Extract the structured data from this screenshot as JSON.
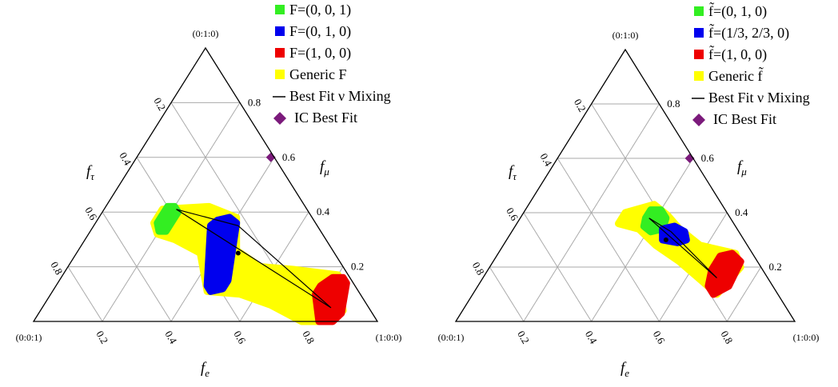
{
  "colors": {
    "green": "#33ee22",
    "blue": "#0000ee",
    "red": "#ee0000",
    "yellow": "#ffff00",
    "purple": "#7b1a7b",
    "grid": "#aaaaaa"
  },
  "chart_data": [
    {
      "type": "ternary",
      "vertex_labels": {
        "top": "(0:1:0)",
        "left": "(0:0:1)",
        "right": "(1:0:0)"
      },
      "axis_labels": {
        "f_tau": "f",
        "f_tau_sub": "τ",
        "f_mu": "f",
        "f_mu_sub": "μ",
        "f_e": "f",
        "f_e_sub": "e"
      },
      "ticks": {
        "left_edge": [
          "0.2",
          "0.4",
          "0.6",
          "0.8"
        ],
        "right_edge": [
          "0.8",
          "0.6",
          "0.4",
          "0.2"
        ],
        "bottom_edge": [
          "0.2",
          "0.4",
          "0.6",
          "0.8"
        ]
      },
      "legend": [
        {
          "label": "F=(0, 0, 1)",
          "color": "green",
          "marker": "square"
        },
        {
          "label": "F=(0, 1, 0)",
          "color": "blue",
          "marker": "square"
        },
        {
          "label": "F=(1, 0, 0)",
          "color": "red",
          "marker": "square"
        },
        {
          "label": "Generic F",
          "color": "yellow",
          "marker": "square"
        },
        {
          "label": "Best Fit ν Mixing",
          "color": "black",
          "marker": "line"
        },
        {
          "label": "IC Best Fit",
          "color": "purple",
          "marker": "diamond"
        }
      ],
      "series": [
        {
          "name": "F=(0, 0, 1)",
          "region": [
            [
              0.18,
              0.42
            ],
            [
              0.2,
              0.42
            ],
            [
              0.22,
              0.4
            ],
            [
              0.22,
              0.33
            ],
            [
              0.2,
              0.33
            ],
            [
              0.18,
              0.36
            ]
          ]
        },
        {
          "name": "F=(0, 1, 0)",
          "region": [
            [
              0.34,
              0.35
            ],
            [
              0.44,
              0.13
            ],
            [
              0.46,
              0.11
            ],
            [
              0.49,
              0.12
            ],
            [
              0.49,
              0.15
            ],
            [
              0.41,
              0.36
            ],
            [
              0.38,
              0.38
            ],
            [
              0.35,
              0.37
            ]
          ]
        },
        {
          "name": "F=(1, 0, 0)",
          "region": [
            [
              0.77,
              0.1
            ],
            [
              0.83,
              0.0
            ],
            [
              0.87,
              0.0
            ],
            [
              0.88,
              0.03
            ],
            [
              0.84,
              0.14
            ],
            [
              0.82,
              0.16
            ],
            [
              0.79,
              0.16
            ],
            [
              0.77,
              0.13
            ]
          ]
        },
        {
          "name": "Generic F",
          "region": [
            [
              0.17,
              0.41
            ],
            [
              0.3,
              0.42
            ],
            [
              0.4,
              0.38
            ],
            [
              0.46,
              0.26
            ],
            [
              0.56,
              0.2
            ],
            [
              0.66,
              0.19
            ],
            [
              0.8,
              0.17
            ],
            [
              0.88,
              0.04
            ],
            [
              0.86,
              0.0
            ],
            [
              0.78,
              0.0
            ],
            [
              0.66,
              0.06
            ],
            [
              0.55,
              0.1
            ],
            [
              0.45,
              0.11
            ],
            [
              0.36,
              0.25
            ],
            [
              0.26,
              0.3
            ],
            [
              0.2,
              0.32
            ],
            [
              0.17,
              0.36
            ]
          ]
        },
        {
          "name": "Best Fit ν Mixing",
          "line": [
            [
              0.21,
              0.41
            ],
            [
              0.42,
              0.35
            ],
            [
              0.84,
              0.05
            ],
            [
              0.21,
              0.41
            ]
          ]
        },
        {
          "name": "best-fit-point",
          "points": [
            [
              0.47,
              0.25
            ]
          ]
        },
        {
          "name": "IC Best Fit",
          "points": [
            [
              0.39,
              0.6
            ]
          ]
        }
      ]
    },
    {
      "type": "ternary",
      "vertex_labels": {
        "top": "(0:1:0)",
        "left": "(0:0:1)",
        "right": "(1:0:0)"
      },
      "axis_labels": {
        "f_tau": "f",
        "f_tau_sub": "τ",
        "f_mu": "f",
        "f_mu_sub": "μ",
        "f_e": "f",
        "f_e_sub": "e"
      },
      "ticks": {
        "left_edge": [
          "0.2",
          "0.4",
          "0.6",
          "0.8"
        ],
        "right_edge": [
          "0.8",
          "0.6",
          "0.4",
          "0.2"
        ],
        "bottom_edge": [
          "0.2",
          "0.4",
          "0.6",
          "0.8"
        ]
      },
      "legend": [
        {
          "label": "f̃=(0, 1, 0)",
          "color": "green",
          "marker": "square"
        },
        {
          "label": "f̃=(1/3, 2/3, 0)",
          "color": "blue",
          "marker": "square"
        },
        {
          "label": "f̃=(1, 0, 0)",
          "color": "red",
          "marker": "square"
        },
        {
          "label": "Generic f̃",
          "color": "yellow",
          "marker": "square"
        },
        {
          "label": "Best Fit ν Mixing",
          "color": "black",
          "marker": "line"
        },
        {
          "label": "IC Best Fit",
          "color": "purple",
          "marker": "diamond"
        }
      ],
      "series": [
        {
          "name": "f̃=(0, 1, 0)",
          "region": [
            [
              0.37,
              0.41
            ],
            [
              0.4,
              0.41
            ],
            [
              0.43,
              0.38
            ],
            [
              0.44,
              0.34
            ],
            [
              0.41,
              0.33
            ],
            [
              0.38,
              0.35
            ],
            [
              0.37,
              0.38
            ]
          ]
        },
        {
          "name": "f̃=(1/3, 2/3, 0)",
          "region": [
            [
              0.44,
              0.34
            ],
            [
              0.47,
              0.35
            ],
            [
              0.51,
              0.33
            ],
            [
              0.53,
              0.3
            ],
            [
              0.51,
              0.29
            ],
            [
              0.46,
              0.3
            ]
          ]
        },
        {
          "name": "f̃=(1, 0, 0)",
          "region": [
            [
              0.66,
              0.19
            ],
            [
              0.68,
              0.13
            ],
            [
              0.71,
              0.1
            ],
            [
              0.74,
              0.13
            ],
            [
              0.73,
              0.22
            ],
            [
              0.69,
              0.25
            ],
            [
              0.66,
              0.24
            ]
          ]
        },
        {
          "name": "Generic f̃",
          "region": [
            [
              0.3,
              0.4
            ],
            [
              0.37,
              0.43
            ],
            [
              0.43,
              0.39
            ],
            [
              0.49,
              0.34
            ],
            [
              0.58,
              0.28
            ],
            [
              0.7,
              0.25
            ],
            [
              0.74,
              0.2
            ],
            [
              0.72,
              0.1
            ],
            [
              0.65,
              0.15
            ],
            [
              0.55,
              0.22
            ],
            [
              0.45,
              0.28
            ],
            [
              0.37,
              0.34
            ],
            [
              0.3,
              0.36
            ]
          ]
        },
        {
          "name": "Best Fit ν Mixing",
          "line": [
            [
              0.38,
              0.38
            ],
            [
              0.47,
              0.33
            ],
            [
              0.69,
              0.16
            ],
            [
              0.38,
              0.38
            ]
          ]
        },
        {
          "name": "best-fit-point",
          "points": [
            [
              0.47,
              0.3
            ]
          ]
        },
        {
          "name": "IC Best Fit",
          "points": [
            [
              0.39,
              0.6
            ]
          ]
        }
      ]
    }
  ]
}
